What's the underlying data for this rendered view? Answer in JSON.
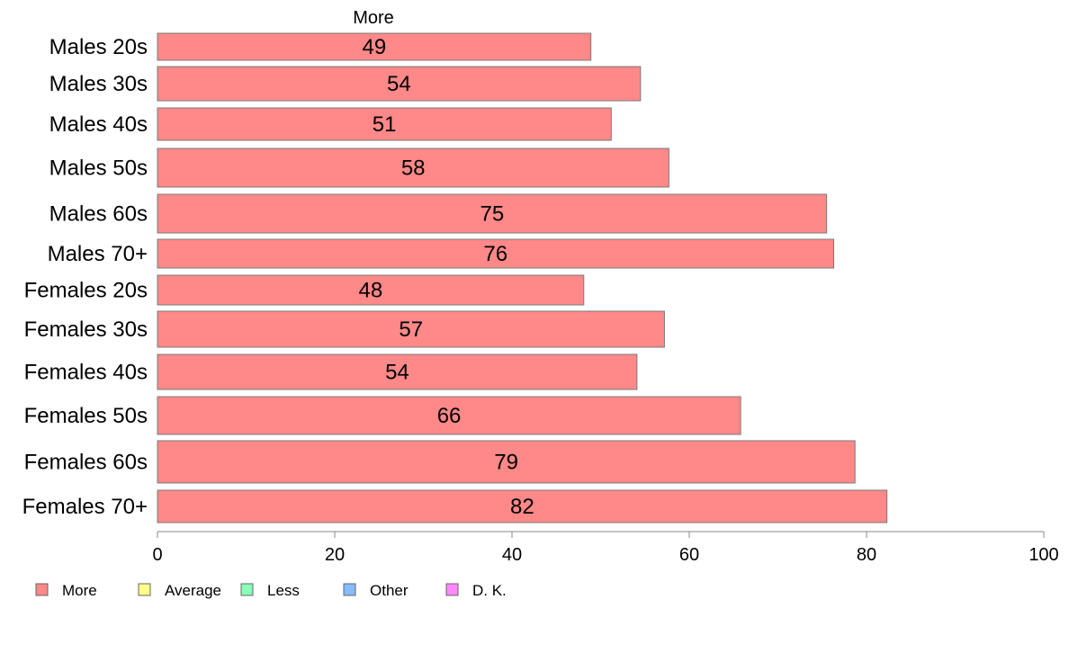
{
  "chart_data": {
    "type": "bar",
    "orientation": "horizontal",
    "series_title": "More",
    "categories": [
      "Males 20s",
      "Males 30s",
      "Males 40s",
      "Males 50s",
      "Males 60s",
      "Males 70+",
      "Females 20s",
      "Females 30s",
      "Females 40s",
      "Females 50s",
      "Females 60s",
      "Females 70+"
    ],
    "series": [
      {
        "name": "More",
        "color": "#ff8888",
        "values": [
          49,
          54,
          51,
          58,
          75,
          76,
          48,
          57,
          54,
          66,
          79,
          82
        ],
        "plotted_values": [
          48.9,
          54.5,
          51.2,
          57.7,
          75.5,
          76.3,
          48.1,
          57.2,
          54.1,
          65.8,
          78.7,
          82.3
        ]
      }
    ],
    "bar_labels": [
      "49",
      "54",
      "51",
      "58",
      "75",
      "76",
      "48",
      "57",
      "54",
      "66",
      "79",
      "82"
    ],
    "xlim": [
      0,
      100
    ],
    "xticks": [
      "0",
      "20",
      "40",
      "60",
      "80",
      "100"
    ],
    "grid": false,
    "legend_position": "bottom-left",
    "legend": [
      {
        "label": "More",
        "color": "#ff8888"
      },
      {
        "label": "Average",
        "color": "#ffff88"
      },
      {
        "label": "Less",
        "color": "#88ffbb"
      },
      {
        "label": "Other",
        "color": "#88bbff"
      },
      {
        "label": "D. K.",
        "color": "#ff88ff"
      }
    ],
    "xlabel": "",
    "ylabel": "",
    "title": ""
  }
}
